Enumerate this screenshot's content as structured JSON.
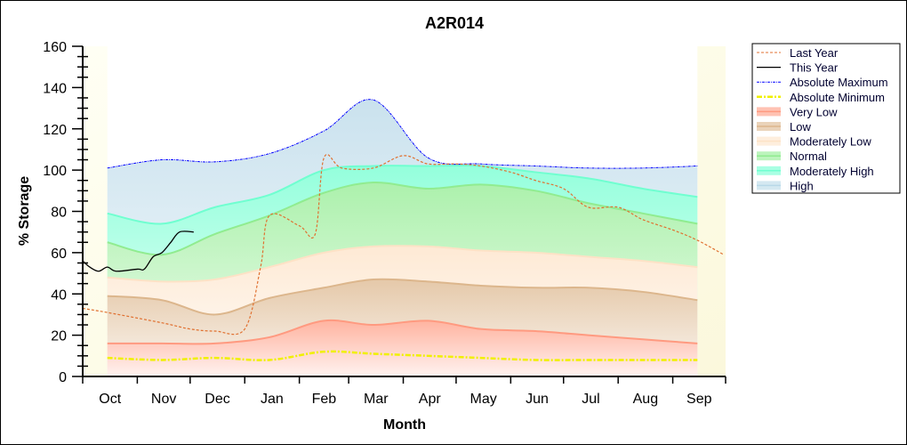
{
  "chart_data": {
    "type": "area",
    "title": "A2R014",
    "xlabel": "Month",
    "ylabel": "% Storage",
    "ylim": [
      0,
      160
    ],
    "yticks": [
      0,
      20,
      40,
      60,
      80,
      100,
      120,
      140,
      160
    ],
    "xticklabels": [
      "Oct",
      "Nov",
      "Dec",
      "Jan",
      "Feb",
      "Mar",
      "Apr",
      "May",
      "Jun",
      "Jul",
      "Aug",
      "Sep"
    ],
    "legend_position": "right",
    "legend": [
      "Last Year",
      "This Year",
      "Absolute Maximum",
      "Absolute Minimum",
      "Very Low",
      "Low",
      "Moderately Low",
      "Normal",
      "Moderately High",
      "High"
    ],
    "band_x": [
      "10-15",
      "11-15",
      "12-15",
      "01-15",
      "02-15",
      "03-15",
      "04-15",
      "05-15",
      "06-15",
      "07-15",
      "08-15",
      "09-15"
    ],
    "bands": [
      {
        "name": "Very Low",
        "color": "#ff9a80",
        "upper": [
          16,
          16,
          16,
          19,
          27,
          25,
          27,
          23,
          22,
          20,
          18,
          16
        ]
      },
      {
        "name": "Low",
        "color": "#dcb68c",
        "upper": [
          39,
          37,
          30,
          38,
          43,
          47,
          46,
          44,
          43,
          43,
          41,
          37
        ]
      },
      {
        "name": "Moderately Low",
        "color": "#fde2c6",
        "upper": [
          48,
          46,
          47,
          53,
          60,
          63,
          63,
          61,
          60,
          58,
          56,
          53
        ]
      },
      {
        "name": "Normal",
        "color": "#90ec90",
        "upper": [
          65,
          59,
          69,
          78,
          89,
          94,
          91,
          93,
          90,
          84,
          79,
          74
        ]
      },
      {
        "name": "Moderately High",
        "color": "#70ffd0",
        "upper": [
          79,
          74,
          82,
          88,
          100,
          102,
          102,
          102,
          99,
          96,
          91,
          87
        ]
      },
      {
        "name": "High",
        "color": "#b8d8e8",
        "upper": [
          101,
          105,
          104,
          108,
          119,
          134,
          106,
          103,
          102,
          101,
          101,
          102
        ]
      }
    ],
    "absolute_minimum": {
      "name": "Absolute Minimum",
      "color": "#f0f000",
      "values": [
        9,
        8,
        9,
        8,
        12,
        11,
        10,
        9,
        8,
        8,
        8,
        8
      ]
    },
    "absolute_maximum": {
      "name": "Absolute Maximum",
      "color": "#0000ff"
    },
    "last_year": {
      "name": "Last Year",
      "color": "#e07030",
      "x": [
        "10-01",
        "10-15",
        "11-15",
        "12-01",
        "12-15",
        "01-01",
        "01-10",
        "01-15",
        "02-01",
        "02-10",
        "02-15",
        "02-25",
        "03-15",
        "04-01",
        "04-15",
        "05-01",
        "05-15",
        "06-01",
        "06-15",
        "07-01",
        "07-15",
        "08-01",
        "08-15",
        "09-01",
        "09-15",
        "09-30"
      ],
      "values": [
        33,
        31,
        26,
        23,
        22,
        23,
        53,
        78,
        73,
        69,
        106,
        101,
        101,
        107,
        103,
        103,
        102,
        99,
        95,
        91,
        82,
        82,
        76,
        71,
        66,
        59
      ]
    },
    "this_year": {
      "name": "This Year",
      "color": "#000000",
      "x": [
        "10-01",
        "10-05",
        "10-10",
        "10-15",
        "10-20",
        "11-01",
        "11-05",
        "11-10",
        "11-15",
        "11-20",
        "11-25",
        "12-03"
      ],
      "values": [
        56,
        53,
        51,
        53,
        51,
        52,
        52,
        58,
        60,
        65,
        70,
        70
      ]
    }
  }
}
